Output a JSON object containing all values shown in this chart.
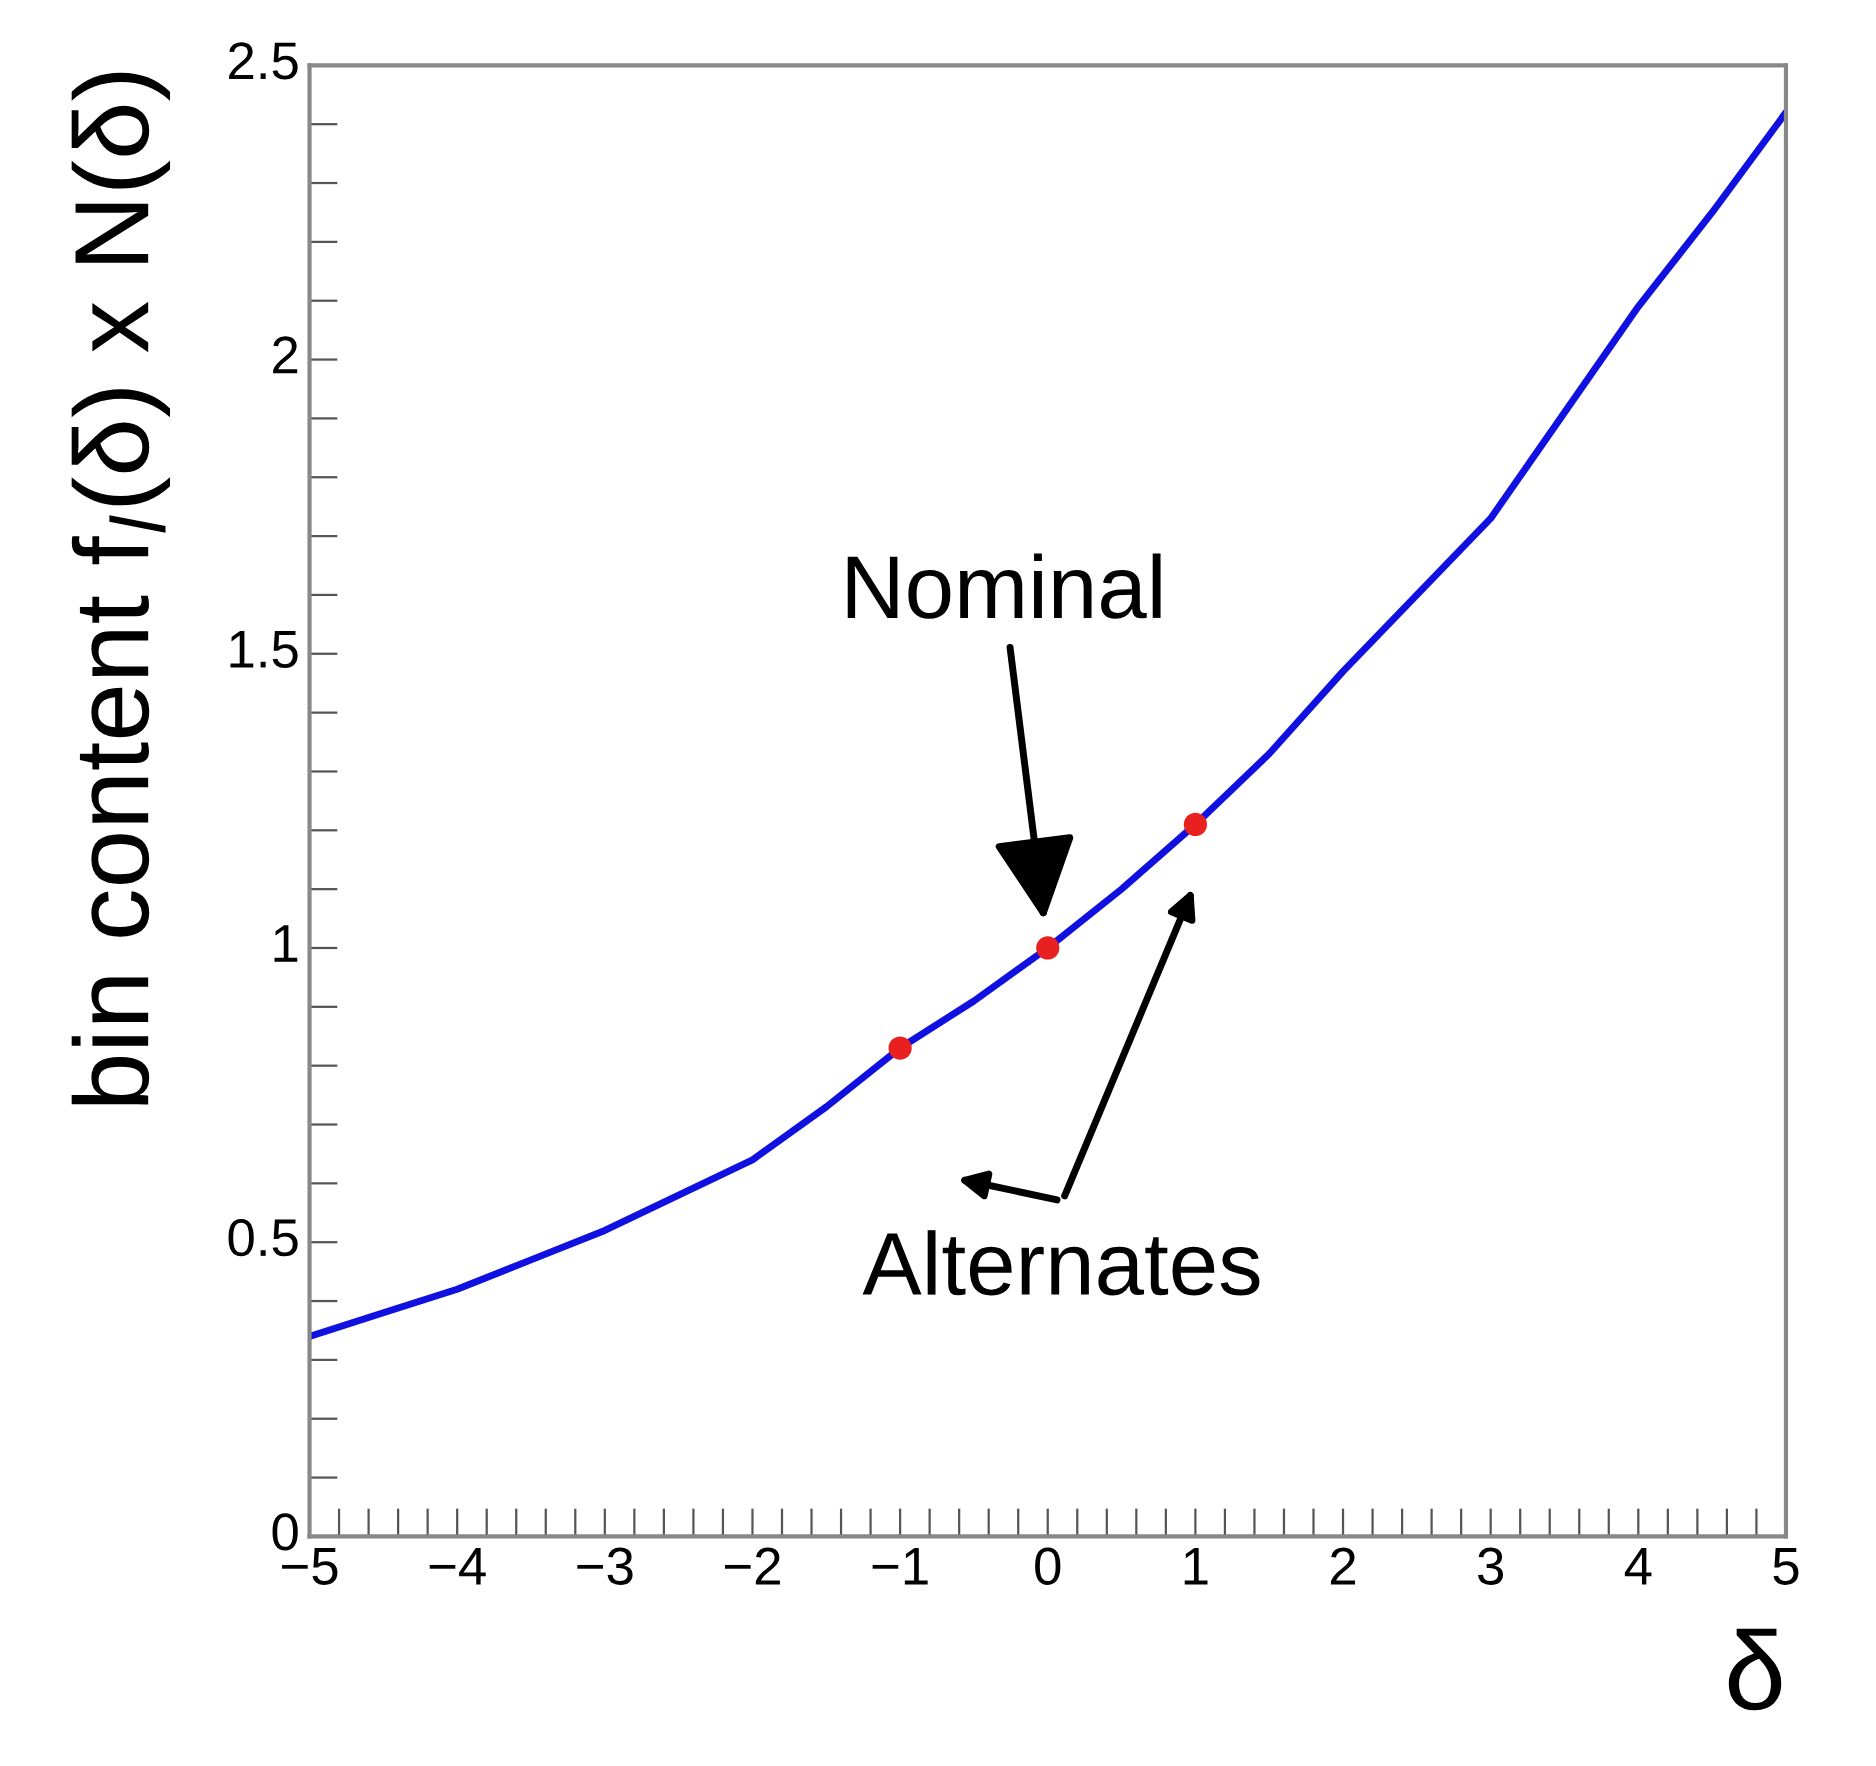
{
  "chart_data": {
    "type": "line",
    "xlabel": "δ",
    "ylabel": "bin content f$_{l}$(δ) x N(δ)",
    "xlim": [
      -5,
      5
    ],
    "ylim": [
      0,
      2.5
    ],
    "xticks": [
      -5,
      {
        "value": -4.8,
        "label": null
      },
      {
        "value": -4.6,
        "label": null
      },
      {
        "value": -4.4,
        "label": null
      },
      {
        "value": -4.2,
        "label": null
      },
      -4,
      {
        "value": -3.8,
        "label": null
      },
      {
        "value": -3.6,
        "label": null
      },
      {
        "value": -3.4,
        "label": null
      },
      {
        "value": -3.2,
        "label": null
      },
      -3,
      {
        "value": -2.8,
        "label": null
      },
      {
        "value": -2.6,
        "label": null
      },
      {
        "value": -2.4,
        "label": null
      },
      {
        "value": -2.2,
        "label": null
      },
      -2,
      {
        "value": -1.8,
        "label": null
      },
      {
        "value": -1.6,
        "label": null
      },
      {
        "value": -1.4,
        "label": null
      },
      {
        "value": -1.2,
        "label": null
      },
      -1,
      {
        "value": -0.8,
        "label": null
      },
      {
        "value": -0.6,
        "label": null
      },
      {
        "value": -0.4,
        "label": null
      },
      {
        "value": -0.2,
        "label": null
      },
      0,
      {
        "value": 0.2,
        "label": null
      },
      {
        "value": 0.4,
        "label": null
      },
      {
        "value": 0.6,
        "label": null
      },
      {
        "value": 0.8,
        "label": null
      },
      1,
      {
        "value": 1.2,
        "label": null
      },
      {
        "value": 1.4,
        "label": null
      },
      {
        "value": 1.6,
        "label": null
      },
      {
        "value": 1.8,
        "label": null
      },
      2,
      {
        "value": 2.2,
        "label": null
      },
      {
        "value": 2.4,
        "label": null
      },
      {
        "value": 2.6,
        "label": null
      },
      {
        "value": 2.8,
        "label": null
      },
      3,
      {
        "value": 3.2,
        "label": null
      },
      {
        "value": 3.4,
        "label": null
      },
      {
        "value": 3.6,
        "label": null
      },
      {
        "value": 3.8,
        "label": null
      },
      4,
      {
        "value": 4.2,
        "label": null
      },
      {
        "value": 4.4,
        "label": null
      },
      {
        "value": 4.6,
        "label": null
      },
      {
        "value": 4.8,
        "label": null
      },
      5
    ],
    "yticks": [
      0,
      {
        "value": 0.1,
        "label": null
      },
      {
        "value": 0.2,
        "label": null
      },
      {
        "value": 0.3,
        "label": null
      },
      {
        "value": 0.4,
        "label": null
      },
      0.5,
      {
        "value": 0.6,
        "label": null
      },
      {
        "value": 0.7,
        "label": null
      },
      {
        "value": 0.8,
        "label": null
      },
      {
        "value": 0.9,
        "label": null
      },
      1,
      {
        "value": 1.1,
        "label": null
      },
      {
        "value": 1.2,
        "label": null
      },
      {
        "value": 1.3,
        "label": null
      },
      {
        "value": 1.4,
        "label": null
      },
      1.5,
      {
        "value": 1.6,
        "label": null
      },
      {
        "value": 1.7,
        "label": null
      },
      {
        "value": 1.8,
        "label": null
      },
      {
        "value": 1.9,
        "label": null
      },
      2,
      {
        "value": 2.1,
        "label": null
      },
      {
        "value": 2.2,
        "label": null
      },
      {
        "value": 2.3,
        "label": null
      },
      {
        "value": 2.4,
        "label": null
      },
      2.5
    ],
    "series": [
      {
        "color": "#1010e0",
        "x": [
          -5,
          -4.5,
          -4,
          -3.5,
          -3,
          -2.5,
          -2,
          -1.5,
          -1,
          -0.5,
          0,
          0.5,
          1,
          1.5,
          2,
          2.5,
          3,
          3.5,
          4,
          4.5,
          5
        ],
        "values": [
          0.34,
          0.38,
          0.42,
          0.47,
          0.52,
          0.58,
          0.64,
          0.73,
          0.83,
          0.91,
          1.0,
          1.1,
          1.21,
          1.33,
          1.47,
          1.6,
          1.73,
          1.91,
          2.09,
          2.25,
          2.42
        ]
      },
      {
        "type": "scatter",
        "color": "#e82020",
        "marker": "circle",
        "x": [
          -1,
          0,
          1
        ],
        "values": [
          0.83,
          1.0,
          1.21
        ]
      }
    ],
    "annotations": [
      "Nominal",
      "Alternates"
    ],
    "grid": false,
    "legend": false
  }
}
